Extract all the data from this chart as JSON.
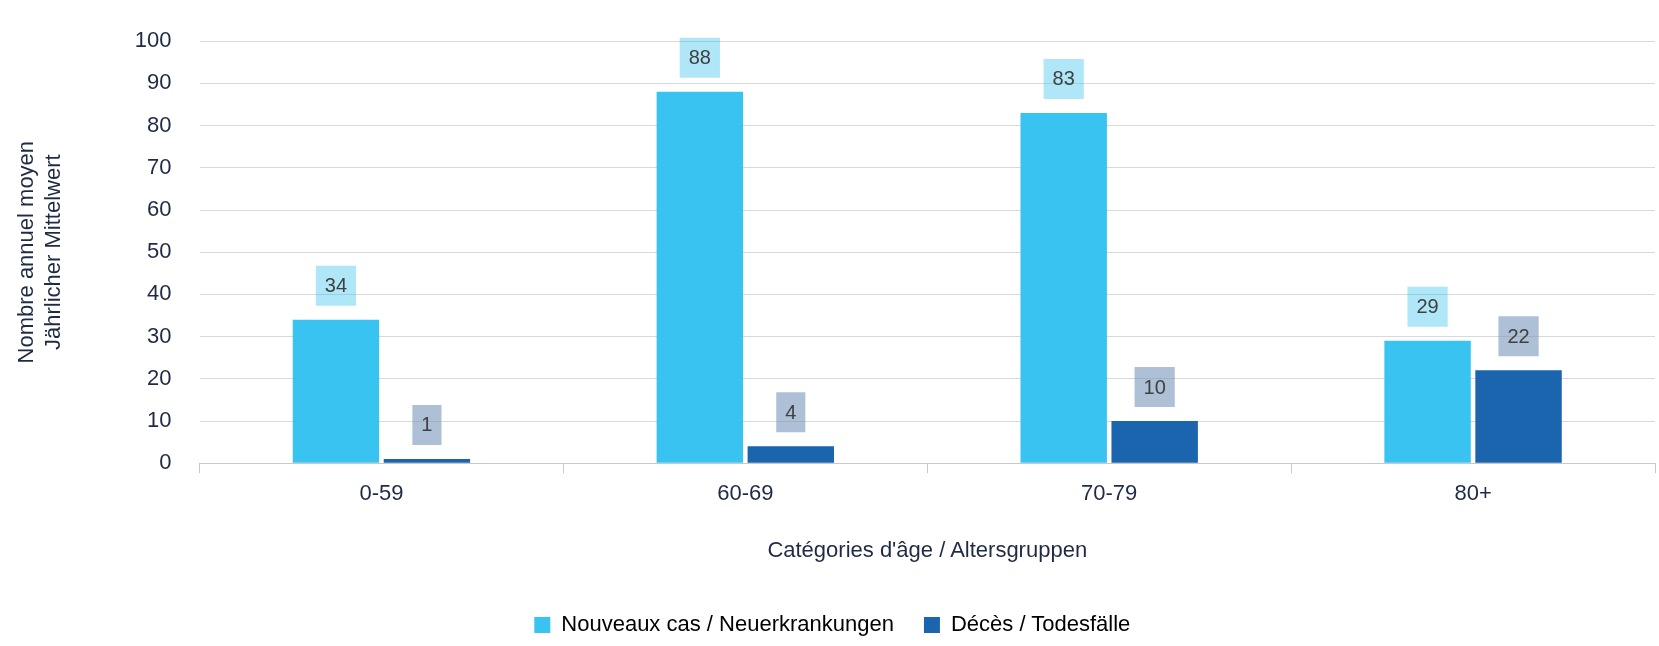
{
  "chart_data": {
    "type": "bar",
    "xlabel": "Catégories d'âge / Altersgruppen",
    "ylabel": "Nombre annuel moyen\nJährlicher Mittelwert",
    "categories": [
      "0-59",
      "60-69",
      "70-79",
      "80+"
    ],
    "series": [
      {
        "name": "Nouveaux cas / Neuerkrankungen",
        "color": "#38c3f1",
        "values": [
          34,
          88,
          83,
          29
        ]
      },
      {
        "name": "Décès / Todesfälle",
        "color": "#1b64ae",
        "values": [
          1,
          4,
          10,
          22
        ]
      }
    ],
    "ylim": [
      0,
      100
    ],
    "yticks": [
      0,
      10,
      20,
      30,
      40,
      50,
      60,
      70,
      80,
      90,
      100
    ],
    "grid": "y",
    "legend": "bottom",
    "data_labels": true
  }
}
